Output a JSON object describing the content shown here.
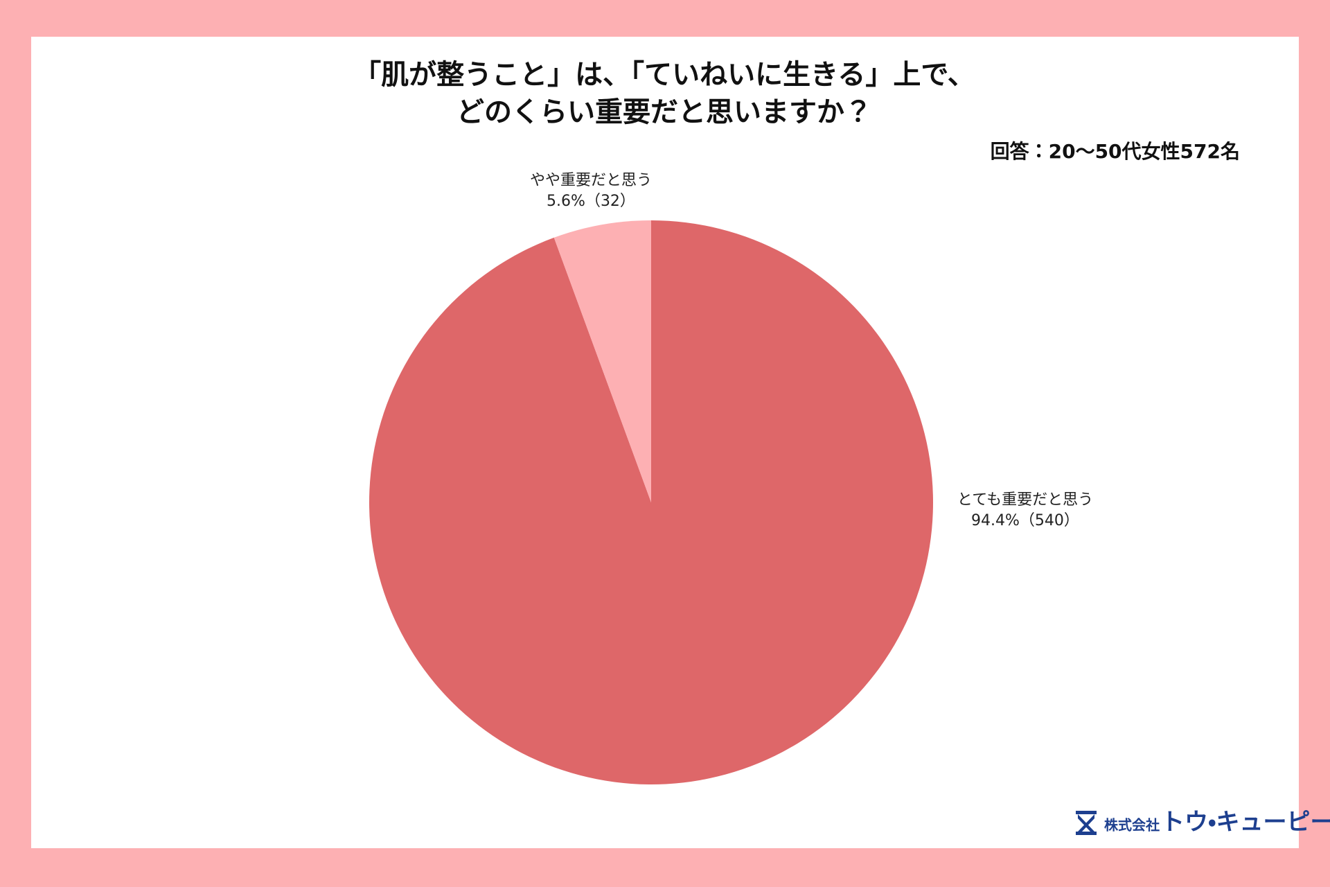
{
  "chart_data": {
    "type": "pie",
    "title": [
      "「肌が整うこと」は、「ていねいに生きる」上で、",
      "どのくらい重要だと思いますか？"
    ],
    "subtitle": "回答：20〜50代女性572名",
    "categories": [
      "とても重要だと思う",
      "やや重要だと思う"
    ],
    "values": [
      94.4,
      5.6
    ],
    "value_labels": [
      "94.4%（540）",
      "5.6%（32）"
    ],
    "colors": [
      "#de6769",
      "#fdb0b3"
    ]
  },
  "logo": {
    "company": "株式会社",
    "name": "トウ・キューピー"
  }
}
